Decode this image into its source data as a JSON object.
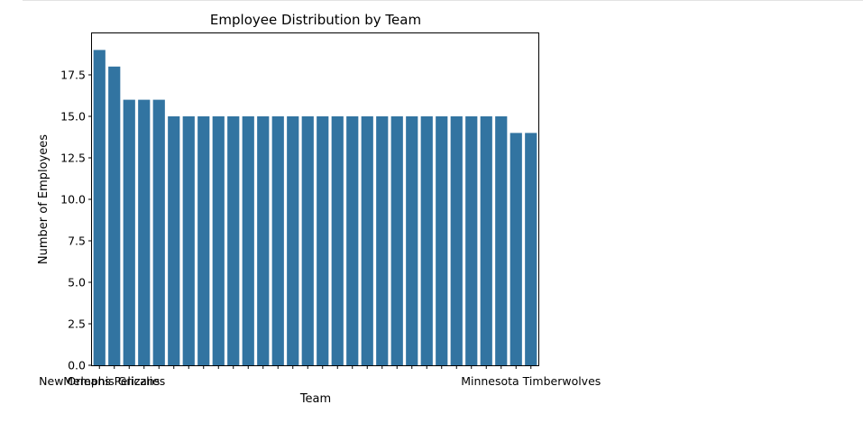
{
  "chart_data": {
    "type": "bar",
    "title": "Employee Distribution by Team",
    "xlabel": "Team",
    "ylabel": "Number of Employees",
    "ylim": [
      0,
      20
    ],
    "yticks": [
      "0.0",
      "2.5",
      "5.0",
      "7.5",
      "10.0",
      "12.5",
      "15.0",
      "17.5"
    ],
    "ytick_values": [
      0,
      2.5,
      5,
      7.5,
      10,
      12.5,
      15,
      17.5
    ],
    "categories": [
      "New Orleans Pelicans",
      "Memphis Grizzlies",
      "",
      "",
      "",
      "",
      "",
      "",
      "",
      "",
      "",
      "",
      "",
      "",
      "",
      "",
      "",
      "",
      "",
      "",
      "",
      "",
      "",
      "",
      "",
      "",
      "",
      "",
      "",
      "Minnesota Timberwolves"
    ],
    "values": [
      19,
      18,
      16,
      16,
      16,
      15,
      15,
      15,
      15,
      15,
      15,
      15,
      15,
      15,
      15,
      15,
      15,
      15,
      15,
      15,
      15,
      15,
      15,
      15,
      15,
      15,
      15,
      15,
      14,
      14
    ],
    "bar_color": "#3274a1",
    "grid": false
  }
}
